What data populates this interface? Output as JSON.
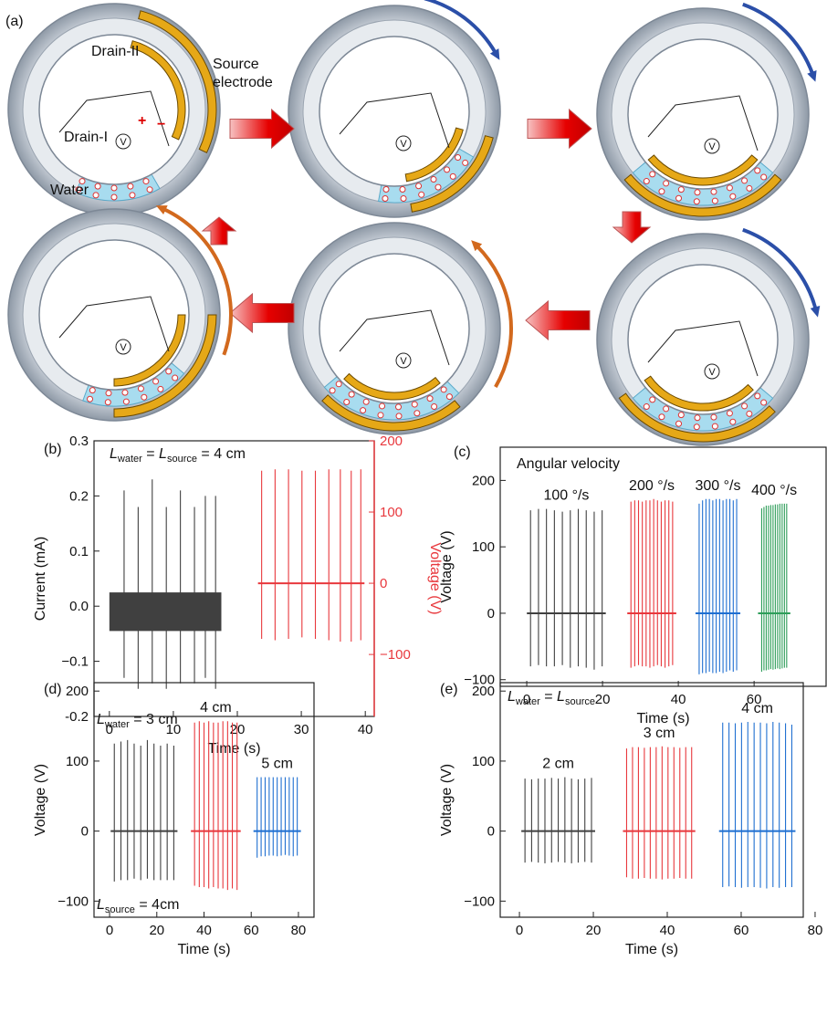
{
  "diagram": {
    "panel": "(a)",
    "source_line1": "Source",
    "source_line2": "electrode",
    "drain2": "Drain-II",
    "drain1": "Drain-I",
    "water": "Water",
    "plus": "+",
    "minus": "−",
    "voltmeter": "V"
  },
  "chart_data": [
    {
      "type": "spike",
      "panel": "(b)",
      "annotation": [
        "L",
        "water",
        " = ",
        "L",
        "source",
        " = 4 cm"
      ],
      "xlabel": "Time (s)",
      "ylabel": "Current (mA)",
      "y2label": "Voltage (V)",
      "xlim": [
        -2.4,
        41.4
      ],
      "xticks": [
        0,
        10,
        20,
        30,
        40
      ],
      "ylim": [
        -0.2,
        0.3
      ],
      "yticks": [
        -0.2,
        {
          "value": -0.1,
          "label": "−0.1"
        },
        {
          "value": 0,
          "label": "0.0"
        },
        0.1,
        0.2,
        0.3
      ],
      "y2lim": [
        -187,
        200
      ],
      "y2ticks": [
        {
          "value": -100,
          "label": "−100"
        },
        0,
        100,
        200
      ],
      "y2color": "#e8383d",
      "series": [
        {
          "color": "#404040",
          "band": [
            -0.045,
            0.025
          ],
          "band_x": [
            0,
            17.5
          ],
          "x": [
            2.3,
            4.5,
            6.7,
            8.9,
            11.1,
            13.3,
            15.0,
            16.6
          ],
          "values": [
            0.21,
            0.18,
            0.23,
            0.18,
            0.21,
            0.18,
            0.2,
            0.2
          ],
          "troughs": [
            -0.13,
            -0.15,
            -0.14,
            -0.15,
            -0.14,
            -0.14,
            -0.13,
            -0.15
          ]
        },
        {
          "color": "#e8383d",
          "axis": "y2",
          "x": [
            23.8,
            25.9,
            28.0,
            30.1,
            32.2,
            34.3,
            36.1,
            37.8,
            39.3
          ],
          "values": [
            158,
            160,
            160,
            158,
            158,
            160,
            160,
            158,
            160
          ],
          "troughs": [
            -78,
            -80,
            -78,
            -76,
            -78,
            -80,
            -82,
            -82,
            -80
          ]
        }
      ]
    },
    {
      "type": "spike",
      "panel": "(c)",
      "annotation": [
        "Angular velocity"
      ],
      "xlabel": "Time (s)",
      "ylabel": "Voltage (V)",
      "xlim": [
        -7,
        79
      ],
      "xticks": [
        0,
        20,
        40,
        60
      ],
      "ylim": [
        -110,
        250
      ],
      "yticks": [
        {
          "value": -100,
          "label": "−100"
        },
        0,
        100,
        200
      ],
      "series": [
        {
          "name": "100 °/s",
          "color": "#404040",
          "x": [
            1,
            3.1,
            5.2,
            7.3,
            9.4,
            11.5,
            13.6,
            15.7,
            17.8,
            19.9
          ],
          "values": [
            155,
            157,
            157,
            155,
            153,
            155,
            157,
            155,
            153,
            155
          ],
          "troughs": [
            -80,
            -78,
            -80,
            -80,
            -78,
            -82,
            -80,
            -82,
            -85,
            -80
          ]
        },
        {
          "name": "200 °/s",
          "color": "#e8383d",
          "x": [
            27.5,
            28.5,
            29.5,
            30.5,
            31.5,
            32.5,
            33.5,
            34.5,
            35.5,
            36.5,
            37.5,
            38.5
          ],
          "values": [
            168,
            170,
            170,
            168,
            170,
            170,
            172,
            170,
            168,
            170,
            170,
            168
          ],
          "troughs": [
            -82,
            -80,
            -78,
            -80,
            -80,
            -82,
            -80,
            -78,
            -80,
            -82,
            -80,
            -78
          ]
        },
        {
          "name": "300 °/s",
          "color": "#1f6fd1",
          "x": [
            45.5,
            46.4,
            47.3,
            48.2,
            49.1,
            50.0,
            50.9,
            51.8,
            52.7,
            53.6,
            54.5,
            55.4
          ],
          "values": [
            165,
            170,
            172,
            172,
            170,
            172,
            172,
            170,
            172,
            172,
            170,
            172
          ],
          "troughs": [
            -92,
            -90,
            -90,
            -88,
            -90,
            -90,
            -88,
            -90,
            -88,
            -86,
            -88,
            -86
          ]
        },
        {
          "name": "400 °/s",
          "color": "#2e9e5a",
          "x": [
            62,
            62.6,
            63.2,
            63.8,
            64.4,
            65.0,
            65.6,
            66.2,
            66.8,
            67.4,
            68.0,
            68.6
          ],
          "values": [
            158,
            160,
            162,
            162,
            163,
            163,
            164,
            164,
            165,
            165,
            165,
            165
          ],
          "troughs": [
            -88,
            -86,
            -86,
            -85,
            -84,
            -85,
            -84,
            -83,
            -84,
            -83,
            -82,
            -82
          ]
        }
      ]
    },
    {
      "type": "spike",
      "panel": "(d)",
      "annotation": [
        "L",
        "water",
        " = 3 cm"
      ],
      "annotation2": [
        "L",
        "source",
        " = 4cm"
      ],
      "xlabel": "Time (s)",
      "ylabel": "Voltage (V)",
      "xlim": [
        -6.6,
        86.6
      ],
      "xticks": [
        0,
        20,
        40,
        60,
        80
      ],
      "ylim": [
        -123,
        212
      ],
      "yticks": [
        {
          "value": -100,
          "label": "−100"
        },
        0,
        100,
        200
      ],
      "series": [
        {
          "color": "#404040",
          "x": [
            2,
            4.8,
            7.6,
            10.4,
            13.2,
            16,
            18.8,
            21.6,
            24.4,
            27.2
          ],
          "values": [
            125,
            128,
            130,
            125,
            122,
            130,
            125,
            122,
            125,
            122
          ],
          "troughs": [
            -72,
            -70,
            -70,
            -68,
            -70,
            -68,
            -70,
            -70,
            -70,
            -70
          ]
        },
        {
          "name": "4 cm",
          "color": "#e8383d",
          "x": [
            36,
            38,
            40,
            42,
            44,
            46,
            48,
            50,
            52,
            54
          ],
          "values": [
            155,
            157,
            155,
            157,
            155,
            155,
            157,
            157,
            155,
            155
          ],
          "troughs": [
            -78,
            -80,
            -80,
            -82,
            -80,
            -82,
            -82,
            -84,
            -82,
            -84
          ]
        },
        {
          "name": "5 cm",
          "color": "#1f6fd1",
          "x": [
            62.5,
            64.2,
            65.9,
            67.6,
            69.3,
            71,
            72.7,
            74.4,
            76.1,
            77.8,
            79.5
          ],
          "values": [
            77,
            77,
            77,
            77,
            77,
            77,
            77,
            77,
            77,
            77,
            77
          ],
          "troughs": [
            -38,
            -36,
            -36,
            -35,
            -35,
            -36,
            -35,
            -34,
            -35,
            -36,
            -35
          ]
        }
      ]
    },
    {
      "type": "spike",
      "panel": "(e)",
      "annotation": [
        "L",
        "water",
        " = ",
        "L",
        "source"
      ],
      "xlabel": "Time (s)",
      "ylabel": "Voltage (V)",
      "xlim": [
        -5.2,
        76.8
      ],
      "xticks": [
        0,
        20,
        40,
        60,
        80
      ],
      "ylim": [
        -123,
        212
      ],
      "yticks": [
        {
          "value": -100,
          "label": "−100"
        },
        0,
        100,
        200
      ],
      "series": [
        {
          "name": "2 cm",
          "color": "#404040",
          "x": [
            1.5,
            3.3,
            5.1,
            6.9,
            8.7,
            10.5,
            12.3,
            14.1,
            15.9,
            17.7,
            19.5
          ],
          "values": [
            75,
            74,
            75,
            75,
            76,
            75,
            77,
            75,
            74,
            75,
            76
          ],
          "troughs": [
            -45,
            -44,
            -45,
            -46,
            -45,
            -44,
            -45,
            -46,
            -45,
            -44,
            -45
          ]
        },
        {
          "name": "3 cm",
          "color": "#e8383d",
          "x": [
            29,
            30.6,
            32.2,
            33.8,
            35.4,
            37,
            38.6,
            40.2,
            41.8,
            43.4,
            45,
            46.6
          ],
          "values": [
            118,
            120,
            120,
            119,
            120,
            120,
            121,
            120,
            120,
            119,
            120,
            120
          ],
          "troughs": [
            -66,
            -68,
            -68,
            -67,
            -68,
            -68,
            -69,
            -68,
            -68,
            -67,
            -68,
            -68
          ]
        },
        {
          "name": "4 cm",
          "color": "#1f6fd1",
          "x": [
            55,
            56.7,
            58.4,
            60.1,
            61.8,
            63.5,
            65.2,
            66.9,
            68.6,
            70.3,
            72,
            73.7
          ],
          "values": [
            155,
            155,
            154,
            155,
            156,
            155,
            155,
            154,
            156,
            155,
            154,
            152
          ],
          "troughs": [
            -80,
            -79,
            -80,
            -81,
            -80,
            -80,
            -81,
            -82,
            -80,
            -81,
            -80,
            -80
          ]
        }
      ]
    }
  ]
}
